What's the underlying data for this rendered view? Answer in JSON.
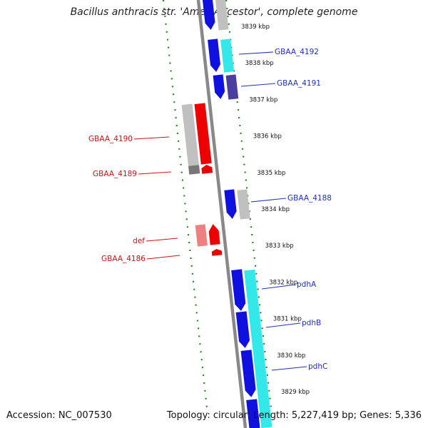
{
  "title": "Bacillus anthracis str. 'Ames Ancestor', complete genome",
  "footer": {
    "accession": "Accession: NC_007530",
    "summary": "Topology: circular; Length: 5,227,419 bp; Genes: 5,336"
  },
  "colors": {
    "backbone": "#888888",
    "guide": "#228822",
    "forward_label": "#1f2fbf",
    "reverse_label": "#cc1111",
    "ruler_text": "#111111",
    "cds_forward": "#1010e0",
    "cds_forward_alt": "#4a3fa0",
    "gene_forward": "#33e8e8",
    "gene_forward_alt": "#c0c0c0",
    "cds_reverse": "#ee0000",
    "gene_reverse": "#c0c0c0",
    "gene_reverse_alt": "#f08080",
    "rna_grey": "#777777"
  },
  "ruler": [
    {
      "kbp": 3839,
      "label": "3839 kbp"
    },
    {
      "kbp": 3838,
      "label": "3838 kbp"
    },
    {
      "kbp": 3837,
      "label": "3837 kbp"
    },
    {
      "kbp": 3836,
      "label": "3836 kbp"
    },
    {
      "kbp": 3835,
      "label": "3835 kbp"
    },
    {
      "kbp": 3834,
      "label": "3834 kbp"
    },
    {
      "kbp": 3833,
      "label": "3833 kbp"
    },
    {
      "kbp": 3832,
      "label": "3832 kbp"
    },
    {
      "kbp": 3831,
      "label": "3831 kbp"
    },
    {
      "kbp": 3830,
      "label": "3830 kbp"
    },
    {
      "kbp": 3829,
      "label": "3829 kbp"
    }
  ],
  "genes": [
    {
      "name": "GBAA_4192",
      "strand": "forward"
    },
    {
      "name": "GBAA_4191",
      "strand": "forward"
    },
    {
      "name": "GBAA_4190",
      "strand": "reverse"
    },
    {
      "name": "GBAA_4189",
      "strand": "reverse"
    },
    {
      "name": "GBAA_4188",
      "strand": "forward"
    },
    {
      "name": "def",
      "strand": "reverse"
    },
    {
      "name": "GBAA_4186",
      "strand": "reverse"
    },
    {
      "name": "pdhA",
      "strand": "forward"
    },
    {
      "name": "pdhB",
      "strand": "forward"
    },
    {
      "name": "pdhC",
      "strand": "forward"
    }
  ]
}
